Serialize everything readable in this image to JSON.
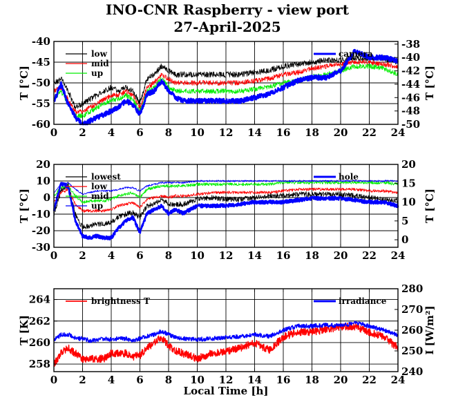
{
  "title": "INO-CNR Raspberry - view port",
  "subtitle": "27-April-2025",
  "chart_data": [
    {
      "type": "line",
      "panel": "top",
      "xlim": [
        0,
        24
      ],
      "xticks": [
        0,
        2,
        4,
        6,
        8,
        10,
        12,
        14,
        16,
        18,
        20,
        22,
        24
      ],
      "ylabel": "T [°C]",
      "ylim": [
        -60,
        -40
      ],
      "yticks": [
        -60,
        -55,
        -50,
        -45,
        -40
      ],
      "y2label": "T [°C]",
      "y2lim": [
        -50,
        -37.6
      ],
      "y2ticks": [
        -50,
        -48,
        -46,
        -44,
        -42,
        -40,
        -38
      ],
      "grid": true,
      "legend_left": "top-left",
      "legend_right": "top-right",
      "series": [
        {
          "name": "low",
          "axis": "left",
          "color": "#000000",
          "width": 0.8,
          "noise": 0.7,
          "x": [
            0,
            0.5,
            1,
            1.5,
            2,
            2.5,
            3,
            3.5,
            4,
            4.5,
            5,
            5.5,
            6,
            6.5,
            7,
            7.5,
            8,
            8.5,
            9,
            10,
            11,
            12,
            13,
            14,
            15,
            16,
            17,
            18,
            19,
            20,
            21,
            22,
            23,
            24
          ],
          "values": [
            -50,
            -49,
            -52,
            -56,
            -55,
            -54,
            -53,
            -52,
            -51,
            -52,
            -51,
            -52,
            -55,
            -49,
            -48,
            -46,
            -47,
            -48,
            -48,
            -48,
            -48,
            -48,
            -48,
            -47.5,
            -47,
            -46,
            -45.5,
            -45,
            -44.5,
            -44.5,
            -44,
            -44,
            -44,
            -45
          ]
        },
        {
          "name": "mid",
          "axis": "left",
          "color": "#ff0000",
          "width": 0.8,
          "noise": 0.6,
          "x": [
            0,
            0.5,
            1,
            1.5,
            2,
            2.5,
            3,
            3.5,
            4,
            4.5,
            5,
            5.5,
            6,
            6.5,
            7,
            7.5,
            8,
            8.5,
            9,
            10,
            11,
            12,
            13,
            14,
            15,
            16,
            17,
            18,
            19,
            20,
            21,
            22,
            23,
            24
          ],
          "values": [
            -52,
            -51,
            -54,
            -57,
            -57,
            -56,
            -55,
            -54,
            -53,
            -53,
            -52,
            -53,
            -56,
            -51,
            -50,
            -48,
            -49,
            -50,
            -50,
            -50,
            -50,
            -50,
            -50,
            -49.5,
            -49,
            -48,
            -47.5,
            -46.5,
            -46,
            -45.5,
            -45,
            -45,
            -45.5,
            -46
          ]
        },
        {
          "name": "up",
          "axis": "left",
          "color": "#00ee00",
          "width": 0.8,
          "noise": 0.6,
          "x": [
            0,
            0.5,
            1,
            1.5,
            2,
            2.5,
            3,
            3.5,
            4,
            4.5,
            5,
            5.5,
            6,
            6.5,
            7,
            7.5,
            8,
            8.5,
            9,
            10,
            11,
            12,
            13,
            14,
            15,
            16,
            17,
            18,
            19,
            20,
            21,
            22,
            23,
            24
          ],
          "values": [
            -54,
            -52,
            -55,
            -58,
            -58,
            -57,
            -56,
            -55,
            -54,
            -54,
            -53,
            -54,
            -57,
            -52,
            -51,
            -49,
            -51,
            -52,
            -52,
            -52,
            -52,
            -52,
            -52,
            -51.5,
            -51,
            -50,
            -49.5,
            -48.5,
            -48,
            -47,
            -46,
            -46,
            -46.5,
            -48
          ]
        },
        {
          "name": "camera",
          "axis": "right",
          "color": "#0000ff",
          "width": 2.6,
          "noise": 0.35,
          "x": [
            0,
            0.5,
            1,
            1.5,
            2,
            2.5,
            3,
            3.5,
            4,
            4.5,
            5,
            5.5,
            6,
            6.5,
            7,
            7.5,
            8,
            8.5,
            9,
            10,
            11,
            12,
            13,
            14,
            15,
            16,
            17,
            18,
            19,
            20,
            21,
            22,
            23,
            24
          ],
          "values": [
            -46.5,
            -44,
            -47,
            -49,
            -50,
            -49.5,
            -49,
            -48.5,
            -48,
            -47.5,
            -46.5,
            -47,
            -48.5,
            -45.5,
            -45,
            -43.5,
            -45,
            -46,
            -46.5,
            -46.5,
            -46.5,
            -46.5,
            -46.5,
            -46,
            -45.5,
            -44.5,
            -43.5,
            -43,
            -43,
            -42,
            -39,
            -40,
            -40,
            -40.5
          ]
        }
      ]
    },
    {
      "type": "line",
      "panel": "middle",
      "xlim": [
        0,
        24
      ],
      "xticks": [
        0,
        2,
        4,
        6,
        8,
        10,
        12,
        14,
        16,
        18,
        20,
        22,
        24
      ],
      "ylabel": "T [°C]",
      "ylim": [
        -30,
        20
      ],
      "yticks": [
        -30,
        -20,
        -10,
        0,
        10,
        20
      ],
      "y2label": "T [°C]",
      "y2lim": [
        -2,
        20
      ],
      "y2ticks": [
        0,
        5,
        10,
        15,
        20
      ],
      "grid": true,
      "legend_left": "top-left",
      "legend_right": "top-right",
      "series": [
        {
          "name": "lowest",
          "axis": "left",
          "color": "#000000",
          "width": 0.8,
          "noise": 1.6,
          "x": [
            0,
            0.5,
            1,
            1.5,
            2,
            2.5,
            3,
            3.5,
            4,
            4.5,
            5,
            5.5,
            6,
            6.5,
            7,
            7.5,
            8,
            8.5,
            9,
            10,
            11,
            12,
            13,
            14,
            15,
            16,
            17,
            18,
            19,
            20,
            21,
            22,
            23,
            24
          ],
          "values": [
            -10,
            4,
            8,
            -10,
            -18,
            -17,
            -16,
            -16,
            -15,
            -12,
            -10,
            -9,
            -12,
            -5,
            -4,
            -1,
            -4,
            -4,
            -4,
            -1,
            0,
            -1,
            -1,
            0,
            1,
            1,
            2,
            2,
            2,
            2,
            1,
            0,
            -1,
            -2
          ]
        },
        {
          "name": "low",
          "axis": "left",
          "color": "#ff0000",
          "width": 0.8,
          "noise": 0.9,
          "x": [
            0,
            0.5,
            1,
            1.5,
            2,
            2.5,
            3,
            3.5,
            4,
            4.5,
            5,
            5.5,
            6,
            6.5,
            7,
            7.5,
            8,
            8.5,
            9,
            10,
            11,
            12,
            13,
            14,
            15,
            16,
            17,
            18,
            19,
            20,
            21,
            22,
            23,
            24
          ],
          "values": [
            -3,
            3,
            5,
            -4,
            -8,
            -8,
            -8,
            -8,
            -7,
            -5,
            -4,
            -3,
            -6,
            -1,
            0,
            1,
            0,
            1,
            1,
            2,
            3,
            3,
            3,
            3,
            3,
            4,
            5,
            5,
            5,
            5,
            5,
            4,
            4,
            3
          ]
        },
        {
          "name": "mid",
          "axis": "left",
          "color": "#00ee00",
          "width": 0.8,
          "noise": 0.9,
          "x": [
            0,
            0.5,
            1,
            1.5,
            2,
            2.5,
            3,
            3.5,
            4,
            4.5,
            5,
            5.5,
            6,
            6.5,
            7,
            7.5,
            8,
            8.5,
            9,
            10,
            11,
            12,
            13,
            14,
            15,
            16,
            17,
            18,
            19,
            20,
            21,
            22,
            23,
            24
          ],
          "values": [
            1,
            6,
            7,
            1,
            -3,
            -2,
            -2,
            -2,
            -1,
            1,
            2,
            3,
            0,
            5,
            6,
            7,
            7,
            7,
            7,
            8,
            8,
            8,
            8,
            8,
            8,
            9,
            9,
            9,
            9,
            9,
            9,
            9,
            9,
            8
          ]
        },
        {
          "name": "up",
          "axis": "left",
          "color": "#0000ff",
          "width": 0.8,
          "noise": 0.5,
          "x": [
            0,
            0.5,
            1,
            1.5,
            2,
            2.5,
            3,
            3.5,
            4,
            4.5,
            5,
            5.5,
            6,
            6.5,
            7,
            7.5,
            8,
            8.5,
            9,
            10,
            11,
            12,
            13,
            14,
            15,
            16,
            17,
            18,
            19,
            20,
            21,
            22,
            23,
            24
          ],
          "values": [
            3,
            8,
            9,
            5,
            2,
            3,
            4,
            4,
            4,
            5,
            6,
            6,
            4,
            7,
            8,
            9,
            9,
            9,
            9,
            10,
            10,
            10,
            10,
            10,
            10,
            10,
            10,
            10,
            10,
            10,
            10,
            10,
            10,
            10
          ]
        },
        {
          "name": "hole",
          "axis": "right",
          "color": "#0000ff",
          "width": 2.6,
          "noise": 0.45,
          "x": [
            0,
            0.5,
            1,
            1.5,
            2,
            2.5,
            3,
            3.5,
            4,
            4.5,
            5,
            5.5,
            6,
            6.5,
            7,
            7.5,
            8,
            8.5,
            9,
            10,
            11,
            12,
            13,
            14,
            15,
            16,
            17,
            18,
            19,
            20,
            21,
            22,
            23,
            24
          ],
          "values": [
            8,
            15,
            14,
            5,
            1,
            0.5,
            1,
            0.5,
            0.5,
            3,
            5,
            6,
            2,
            7,
            8,
            9,
            7,
            8,
            7,
            9,
            9,
            9,
            9.5,
            10,
            10,
            10,
            10.5,
            11,
            11,
            11,
            10.5,
            10,
            10,
            9
          ]
        }
      ]
    },
    {
      "type": "line",
      "panel": "bottom",
      "xlabel": "Local Time [h]",
      "xlim": [
        0,
        24
      ],
      "xticks": [
        0,
        2,
        4,
        6,
        8,
        10,
        12,
        14,
        16,
        18,
        20,
        22,
        24
      ],
      "ylabel": "T [K]",
      "ylim": [
        257.3,
        265
      ],
      "yticks": [
        258,
        260,
        262,
        264
      ],
      "y2label": "I [W/m²]",
      "y2lim": [
        240,
        280
      ],
      "y2ticks": [
        240,
        250,
        260,
        270,
        280
      ],
      "grid": true,
      "legend_left": "top-left",
      "legend_right": "top-right",
      "series": [
        {
          "name": "brightness T",
          "axis": "left",
          "color": "#ff0000",
          "width": 1.4,
          "noise": 0.35,
          "x": [
            0,
            0.5,
            1,
            1.5,
            2,
            2.5,
            3,
            3.5,
            4,
            4.5,
            5,
            5.5,
            6,
            6.5,
            7,
            7.5,
            8,
            8.5,
            9,
            10,
            11,
            12,
            13,
            14,
            15,
            16,
            17,
            18,
            19,
            20,
            21,
            22,
            23,
            24
          ],
          "values": [
            258,
            259,
            259.5,
            259,
            258.5,
            258.5,
            258.5,
            258.5,
            259,
            259,
            259,
            258.7,
            258.8,
            259.5,
            260,
            260.5,
            259.7,
            259.2,
            259,
            258.5,
            259,
            259.2,
            259.5,
            260,
            259.3,
            260.5,
            261,
            261,
            261.2,
            261.5,
            261.5,
            261,
            260.5,
            259.5
          ]
        },
        {
          "name": "irradiance",
          "axis": "right",
          "color": "#0000ff",
          "width": 1.4,
          "noise": 1.0,
          "x": [
            0,
            0.5,
            1,
            1.5,
            2,
            2.5,
            3,
            3.5,
            4,
            4.5,
            5,
            5.5,
            6,
            6.5,
            7,
            7.5,
            8,
            8.5,
            9,
            10,
            11,
            12,
            13,
            14,
            15,
            16,
            17,
            18,
            19,
            20,
            21,
            22,
            23,
            24
          ],
          "values": [
            255,
            258,
            258,
            256,
            256,
            255,
            255,
            256,
            255.5,
            256,
            256,
            255,
            256,
            257,
            258,
            259.5,
            258,
            256.5,
            256,
            255.5,
            256,
            256.5,
            257,
            258,
            257,
            260,
            262,
            262,
            262.5,
            262,
            263.5,
            262,
            260,
            257.5
          ]
        }
      ]
    }
  ]
}
